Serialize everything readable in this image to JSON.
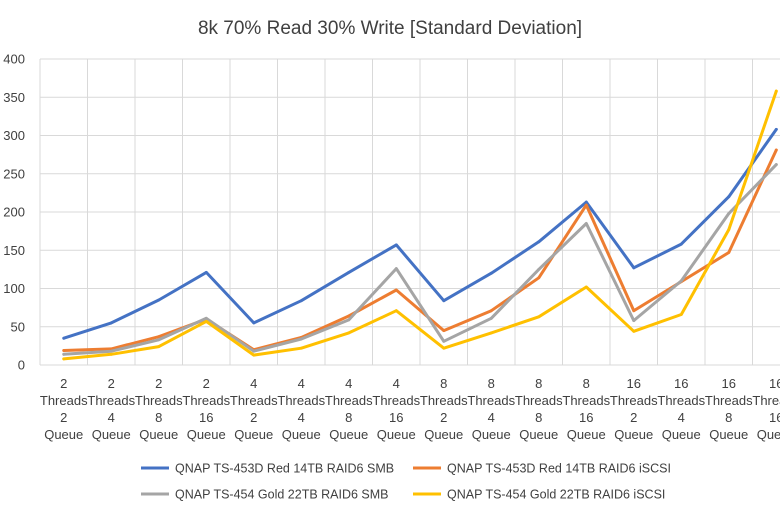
{
  "chart_data": {
    "type": "line",
    "title": "8k 70% Read 30% Write [Standard Deviation]",
    "xlabel": "",
    "ylabel": "",
    "ylim": [
      0,
      400
    ],
    "yticks": [
      0,
      50,
      100,
      150,
      200,
      250,
      300,
      350,
      400
    ],
    "grid": true,
    "legend_position": "bottom",
    "categories": [
      [
        "2",
        "Threads",
        "2",
        "Queue"
      ],
      [
        "2",
        "Threads",
        "4",
        "Queue"
      ],
      [
        "2",
        "Threads",
        "8",
        "Queue"
      ],
      [
        "2",
        "Threads",
        "16",
        "Queue"
      ],
      [
        "4",
        "Threads",
        "2",
        "Queue"
      ],
      [
        "4",
        "Threads",
        "4",
        "Queue"
      ],
      [
        "4",
        "Threads",
        "8",
        "Queue"
      ],
      [
        "4",
        "Threads",
        "16",
        "Queue"
      ],
      [
        "8",
        "Threads",
        "2",
        "Queue"
      ],
      [
        "8",
        "Threads",
        "4",
        "Queue"
      ],
      [
        "8",
        "Threads",
        "8",
        "Queue"
      ],
      [
        "8",
        "Threads",
        "16",
        "Queue"
      ],
      [
        "16",
        "Threads",
        "2",
        "Queue"
      ],
      [
        "16",
        "Threads",
        "4",
        "Queue"
      ],
      [
        "16",
        "Threads",
        "8",
        "Queue"
      ],
      [
        "16",
        "Threads",
        "16",
        "Queue"
      ]
    ],
    "series": [
      {
        "name": "QNAP TS-453D Red 14TB RAID6 SMB",
        "color": "#4472C4",
        "values": [
          35,
          55,
          85,
          121,
          55,
          84,
          121,
          157,
          84,
          120,
          161,
          213,
          127,
          158,
          220,
          308
        ]
      },
      {
        "name": "QNAP TS-453D Red 14TB RAID6 iSCSI",
        "color": "#ED7D31",
        "values": [
          19,
          21,
          37,
          60,
          20,
          36,
          64,
          98,
          45,
          71,
          114,
          209,
          71,
          109,
          147,
          281
        ]
      },
      {
        "name": "QNAP TS-454 Gold 22TB RAID6 SMB",
        "color": "#A5A5A5",
        "values": [
          14,
          18,
          33,
          61,
          18,
          34,
          59,
          126,
          31,
          61,
          125,
          185,
          58,
          110,
          198,
          262
        ]
      },
      {
        "name": "QNAP TS-454 Gold 22TB RAID6 iSCSI",
        "color": "#FFC000",
        "values": [
          8,
          14,
          24,
          57,
          13,
          22,
          42,
          71,
          22,
          42,
          63,
          102,
          44,
          66,
          177,
          358
        ]
      }
    ]
  }
}
